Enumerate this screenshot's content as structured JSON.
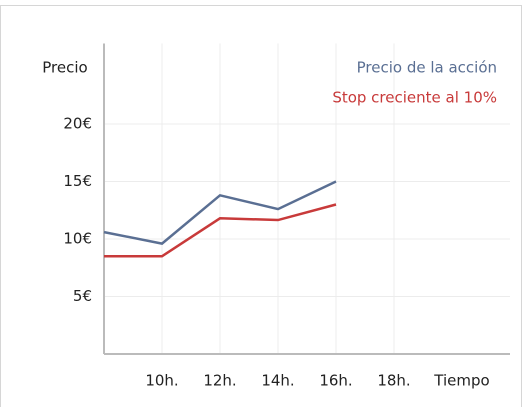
{
  "chart_data": {
    "type": "line",
    "y_label": "Precio",
    "x_label": "Tiempo",
    "x": [
      8,
      10,
      12,
      14,
      16
    ],
    "series": [
      {
        "name": "Precio de la acción",
        "color": "#5a6f93",
        "values": [
          10.6,
          9.6,
          13.8,
          12.6,
          15.0
        ]
      },
      {
        "name": "Stop creciente al 10%",
        "color": "#c83a3a",
        "values": [
          8.5,
          8.5,
          11.8,
          11.65,
          13.0
        ]
      }
    ],
    "xlim": [
      8,
      22
    ],
    "xticks": [
      {
        "value": 10,
        "label": "10h."
      },
      {
        "value": 12,
        "label": "12h."
      },
      {
        "value": 14,
        "label": "14h."
      },
      {
        "value": 16,
        "label": "16h."
      },
      {
        "value": 18,
        "label": "18h."
      }
    ],
    "ylim": [
      0,
      27
    ],
    "yticks": [
      {
        "value": 5,
        "label": "5€"
      },
      {
        "value": 10,
        "label": "10€"
      },
      {
        "value": 15,
        "label": "15€"
      },
      {
        "value": 20,
        "label": "20€"
      }
    ],
    "grid": true,
    "legend": "top-right"
  }
}
